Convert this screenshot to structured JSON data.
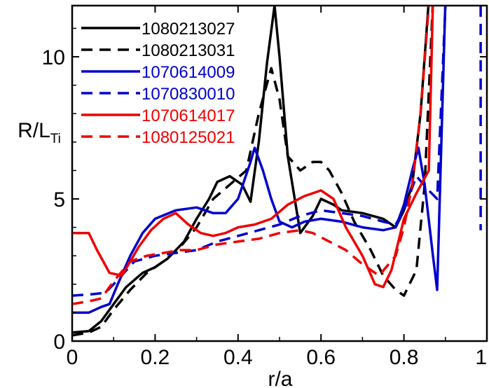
{
  "chart_data": {
    "type": "line",
    "xlabel": "r/a",
    "ylabel": "R/L",
    "ylabel_subscript": "Ti",
    "xlim": [
      0,
      1
    ],
    "ylim": [
      0,
      11.8
    ],
    "xticks": [
      0,
      0.2,
      0.4,
      0.6,
      0.8,
      1
    ],
    "xtick_labels": [
      "0",
      "0.2",
      "0.4",
      "0.6",
      "0.8",
      "1"
    ],
    "yticks": [
      0,
      5,
      10
    ],
    "ytick_labels": [
      "0",
      "5",
      "10"
    ],
    "grid": false,
    "legend_position": "top-left",
    "series": [
      {
        "name": "1080213027",
        "color": "#000000",
        "dash": "solid",
        "points": [
          [
            0,
            0.3
          ],
          [
            0.04,
            0.35
          ],
          [
            0.07,
            0.7
          ],
          [
            0.1,
            1.3
          ],
          [
            0.13,
            1.9
          ],
          [
            0.17,
            2.4
          ],
          [
            0.2,
            2.6
          ],
          [
            0.23,
            2.9
          ],
          [
            0.27,
            3.5
          ],
          [
            0.3,
            4.3
          ],
          [
            0.33,
            5.0
          ],
          [
            0.35,
            5.6
          ],
          [
            0.38,
            5.8
          ],
          [
            0.41,
            5.5
          ],
          [
            0.43,
            4.9
          ],
          [
            0.45,
            7.0
          ],
          [
            0.47,
            9.8
          ],
          [
            0.488,
            11.8
          ],
          [
            0.5,
            10.0
          ],
          [
            0.52,
            6.5
          ],
          [
            0.55,
            3.8
          ],
          [
            0.58,
            4.4
          ],
          [
            0.6,
            5.0
          ],
          [
            0.63,
            4.8
          ],
          [
            0.65,
            4.6
          ],
          [
            0.7,
            4.5
          ],
          [
            0.75,
            4.3
          ],
          [
            0.78,
            4.0
          ],
          [
            0.8,
            4.6
          ],
          [
            0.82,
            5.5
          ],
          [
            0.84,
            8.0
          ],
          [
            0.86,
            12.0
          ]
        ]
      },
      {
        "name": "1080213031",
        "color": "#000000",
        "dash": "dashed",
        "points": [
          [
            0,
            0.2
          ],
          [
            0.04,
            0.3
          ],
          [
            0.07,
            0.5
          ],
          [
            0.1,
            1.1
          ],
          [
            0.14,
            1.8
          ],
          [
            0.18,
            2.4
          ],
          [
            0.22,
            2.8
          ],
          [
            0.26,
            3.3
          ],
          [
            0.3,
            4.0
          ],
          [
            0.34,
            5.0
          ],
          [
            0.38,
            5.5
          ],
          [
            0.42,
            6.0
          ],
          [
            0.45,
            8.0
          ],
          [
            0.48,
            9.6
          ],
          [
            0.5,
            8.5
          ],
          [
            0.52,
            6.5
          ],
          [
            0.55,
            6.0
          ],
          [
            0.58,
            6.3
          ],
          [
            0.6,
            6.3
          ],
          [
            0.62,
            6.0
          ],
          [
            0.65,
            5.2
          ],
          [
            0.68,
            4.2
          ],
          [
            0.72,
            3.2
          ],
          [
            0.75,
            2.3
          ],
          [
            0.78,
            1.8
          ],
          [
            0.8,
            1.6
          ],
          [
            0.83,
            2.5
          ],
          [
            0.85,
            5.5
          ],
          [
            0.87,
            12.0
          ]
        ]
      },
      {
        "name": "1070614009",
        "color": "#0000cc",
        "dash": "solid",
        "points": [
          [
            0,
            1.0
          ],
          [
            0.04,
            1.0
          ],
          [
            0.07,
            1.2
          ],
          [
            0.09,
            1.3
          ],
          [
            0.11,
            2.0
          ],
          [
            0.14,
            3.0
          ],
          [
            0.17,
            3.8
          ],
          [
            0.2,
            4.3
          ],
          [
            0.25,
            4.6
          ],
          [
            0.3,
            4.7
          ],
          [
            0.34,
            4.5
          ],
          [
            0.37,
            4.5
          ],
          [
            0.4,
            5.0
          ],
          [
            0.43,
            6.3
          ],
          [
            0.44,
            6.8
          ],
          [
            0.46,
            6.0
          ],
          [
            0.48,
            5.0
          ],
          [
            0.5,
            4.2
          ],
          [
            0.53,
            4.0
          ],
          [
            0.56,
            4.2
          ],
          [
            0.6,
            4.3
          ],
          [
            0.65,
            4.2
          ],
          [
            0.7,
            4.0
          ],
          [
            0.75,
            3.9
          ],
          [
            0.78,
            4.0
          ],
          [
            0.8,
            4.8
          ],
          [
            0.82,
            6.0
          ],
          [
            0.835,
            6.8
          ],
          [
            0.85,
            5.5
          ],
          [
            0.87,
            3.0
          ],
          [
            0.88,
            1.8
          ],
          [
            0.9,
            12.0
          ]
        ]
      },
      {
        "name": "1070830010",
        "color": "#0000cc",
        "dash": "dashed",
        "points": [
          [
            0,
            1.6
          ],
          [
            0.05,
            1.65
          ],
          [
            0.08,
            1.7
          ],
          [
            0.1,
            2.0
          ],
          [
            0.15,
            2.8
          ],
          [
            0.2,
            3.0
          ],
          [
            0.25,
            3.1
          ],
          [
            0.3,
            3.2
          ],
          [
            0.35,
            3.5
          ],
          [
            0.4,
            3.7
          ],
          [
            0.45,
            3.9
          ],
          [
            0.5,
            4.1
          ],
          [
            0.55,
            4.4
          ],
          [
            0.6,
            4.6
          ],
          [
            0.65,
            4.5
          ],
          [
            0.7,
            4.4
          ],
          [
            0.75,
            4.2
          ],
          [
            0.78,
            4.1
          ],
          [
            0.8,
            4.6
          ],
          [
            0.83,
            5.8
          ],
          [
            0.86,
            5.3
          ],
          [
            0.88,
            5.0
          ],
          [
            0.9,
            11.8
          ]
        ],
        "points2": [
          [
            0.985,
            11.8
          ],
          [
            0.985,
            3.9
          ]
        ]
      },
      {
        "name": "1070614017",
        "color": "#ee0000",
        "dash": "solid",
        "points": [
          [
            0,
            3.8
          ],
          [
            0.04,
            3.8
          ],
          [
            0.06,
            3.2
          ],
          [
            0.09,
            2.4
          ],
          [
            0.12,
            2.3
          ],
          [
            0.16,
            3.3
          ],
          [
            0.19,
            3.9
          ],
          [
            0.22,
            4.3
          ],
          [
            0.25,
            4.5
          ],
          [
            0.28,
            4.1
          ],
          [
            0.31,
            3.8
          ],
          [
            0.34,
            3.7
          ],
          [
            0.37,
            3.8
          ],
          [
            0.4,
            4.0
          ],
          [
            0.44,
            4.1
          ],
          [
            0.48,
            4.3
          ],
          [
            0.52,
            4.8
          ],
          [
            0.56,
            5.1
          ],
          [
            0.6,
            5.3
          ],
          [
            0.63,
            5.0
          ],
          [
            0.66,
            4.0
          ],
          [
            0.7,
            3.0
          ],
          [
            0.73,
            2.0
          ],
          [
            0.75,
            1.9
          ],
          [
            0.77,
            2.5
          ],
          [
            0.8,
            4.3
          ],
          [
            0.83,
            5.2
          ],
          [
            0.86,
            6.0
          ],
          [
            0.87,
            12.0
          ]
        ]
      },
      {
        "name": "1080125021",
        "color": "#ee0000",
        "dash": "dashed",
        "points": [
          [
            0,
            1.3
          ],
          [
            0.04,
            1.4
          ],
          [
            0.07,
            1.5
          ],
          [
            0.1,
            2.1
          ],
          [
            0.14,
            2.8
          ],
          [
            0.18,
            3.0
          ],
          [
            0.22,
            3.1
          ],
          [
            0.26,
            3.2
          ],
          [
            0.3,
            3.2
          ],
          [
            0.35,
            3.4
          ],
          [
            0.4,
            3.5
          ],
          [
            0.45,
            3.6
          ],
          [
            0.5,
            3.8
          ],
          [
            0.55,
            3.9
          ],
          [
            0.58,
            3.8
          ],
          [
            0.62,
            3.5
          ],
          [
            0.66,
            3.2
          ],
          [
            0.7,
            2.7
          ],
          [
            0.74,
            2.3
          ],
          [
            0.78,
            3.0
          ],
          [
            0.8,
            4.0
          ],
          [
            0.82,
            5.5
          ],
          [
            0.84,
            8.0
          ],
          [
            0.86,
            11.8
          ]
        ]
      }
    ]
  }
}
